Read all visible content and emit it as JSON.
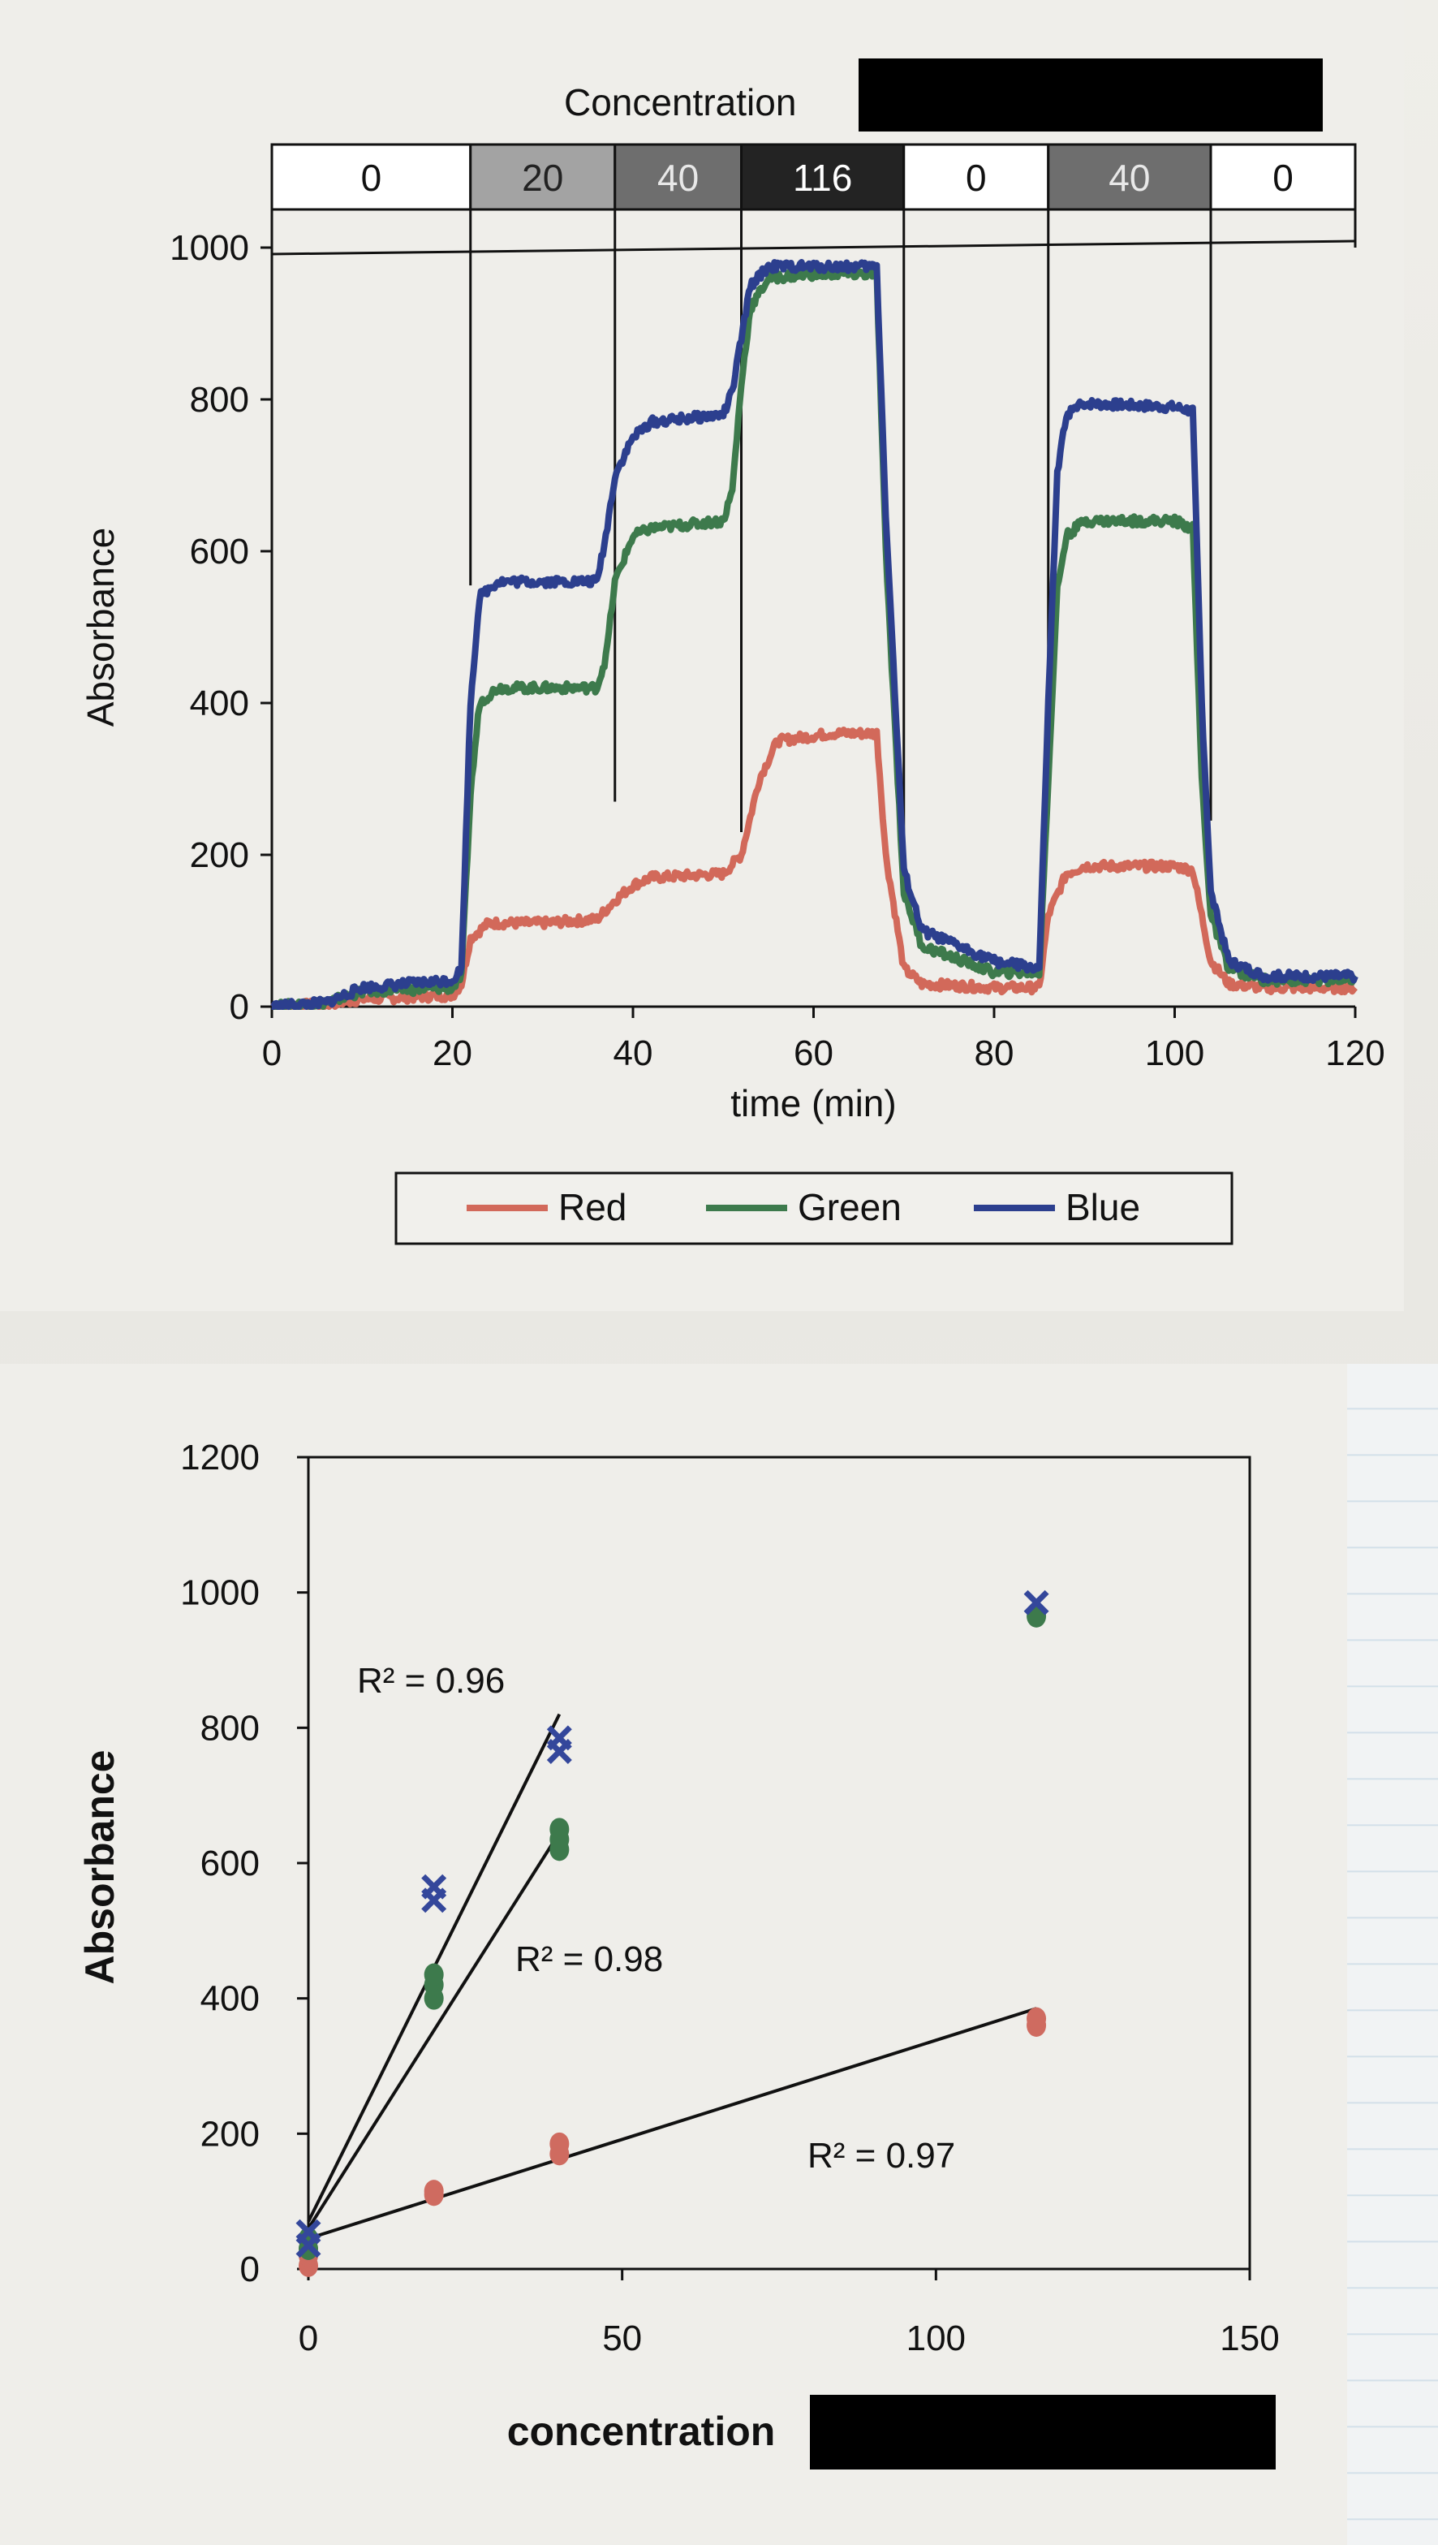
{
  "chart_data": [
    {
      "type": "line",
      "concentration_bar": {
        "title": "Concentration",
        "segments": [
          {
            "label": "0",
            "start": 0,
            "end": 22,
            "color": "#ffffff",
            "text_color": "#111111"
          },
          {
            "label": "20",
            "start": 22,
            "end": 38,
            "color": "#a3a3a3",
            "text_color": "#222222"
          },
          {
            "label": "40",
            "start": 38,
            "end": 52,
            "color": "#6e6e6e",
            "text_color": "#e8e8e8"
          },
          {
            "label": "116",
            "start": 52,
            "end": 70,
            "color": "#232323",
            "text_color": "#ffffff"
          },
          {
            "label": "0",
            "start": 70,
            "end": 86,
            "color": "#ffffff",
            "text_color": "#111111"
          },
          {
            "label": "40",
            "start": 86,
            "end": 104,
            "color": "#6e6e6e",
            "text_color": "#e8e8e8"
          },
          {
            "label": "0",
            "start": 104,
            "end": 120,
            "color": "#ffffff",
            "text_color": "#111111"
          }
        ]
      },
      "xlabel": "time (min)",
      "ylabel": "Absorbance",
      "xlim": [
        0,
        120
      ],
      "ylim": [
        0,
        1000
      ],
      "xticks": [
        "0",
        "20",
        "40",
        "60",
        "80",
        "100",
        "120"
      ],
      "yticks": [
        "0",
        "200",
        "400",
        "600",
        "800",
        "1000"
      ],
      "grid": false,
      "legend_position": "bottom",
      "series": [
        {
          "name": "Red",
          "color": "#d2695a",
          "x": [
            0,
            6,
            10,
            20,
            21,
            22,
            24,
            30,
            36,
            38,
            40,
            42,
            50,
            52,
            54,
            56,
            62,
            67,
            68,
            70,
            72,
            80,
            85,
            86,
            88,
            90,
            100,
            102,
            104,
            106,
            110,
            120
          ],
          "y": [
            0,
            3,
            10,
            15,
            30,
            90,
            110,
            110,
            115,
            140,
            160,
            170,
            175,
            200,
            300,
            350,
            360,
            360,
            200,
            50,
            30,
            25,
            25,
            120,
            175,
            185,
            185,
            180,
            60,
            30,
            25,
            25
          ]
        },
        {
          "name": "Green",
          "color": "#3d7a4c",
          "x": [
            0,
            6,
            10,
            20,
            21,
            22,
            23,
            25,
            30,
            36,
            37,
            38,
            40,
            42,
            50,
            51,
            52,
            53,
            55,
            60,
            67,
            68,
            70,
            72,
            80,
            85,
            86,
            87,
            88,
            90,
            100,
            102,
            103,
            104,
            106,
            110,
            120
          ],
          "y": [
            0,
            5,
            20,
            25,
            40,
            280,
            400,
            420,
            420,
            420,
            460,
            560,
            620,
            630,
            640,
            680,
            820,
            920,
            960,
            965,
            965,
            600,
            150,
            80,
            45,
            45,
            300,
            550,
            620,
            640,
            640,
            630,
            300,
            120,
            50,
            35,
            35
          ]
        },
        {
          "name": "Blue",
          "color": "#2c3f8e",
          "x": [
            0,
            6,
            10,
            20,
            21,
            22,
            23,
            25,
            30,
            36,
            37,
            38,
            40,
            42,
            50,
            51,
            52,
            53,
            55,
            60,
            67,
            68,
            70,
            72,
            80,
            85,
            86,
            87,
            88,
            90,
            100,
            102,
            103,
            104,
            106,
            110,
            120
          ],
          "y": [
            0,
            5,
            25,
            35,
            50,
            400,
            540,
            560,
            560,
            560,
            620,
            700,
            750,
            770,
            780,
            810,
            880,
            950,
            975,
            975,
            975,
            650,
            180,
            100,
            60,
            50,
            400,
            700,
            780,
            795,
            790,
            785,
            400,
            150,
            60,
            40,
            40
          ]
        }
      ]
    },
    {
      "type": "scatter",
      "xlabel": "concentration",
      "ylabel": "Absorbance",
      "xlim": [
        0,
        150
      ],
      "ylim": [
        0,
        1200
      ],
      "xticks": [
        "0",
        "50",
        "100",
        "150"
      ],
      "yticks": [
        "0",
        "200",
        "400",
        "600",
        "800",
        "1000",
        "1200"
      ],
      "grid": false,
      "series": [
        {
          "name": "Red",
          "color": "#cf6b60",
          "marker": "circle",
          "x": [
            0,
            0,
            20,
            20,
            40,
            40,
            116,
            116
          ],
          "y": [
            5,
            20,
            110,
            115,
            170,
            185,
            360,
            370
          ],
          "trendline": {
            "x": [
              0,
              116
            ],
            "y": [
              45,
              385
            ],
            "r2_label": "R² = 0.97"
          }
        },
        {
          "name": "Green",
          "color": "#3d7a4c",
          "marker": "circle",
          "x": [
            0,
            0,
            20,
            20,
            20,
            40,
            40,
            40,
            116
          ],
          "y": [
            30,
            45,
            400,
            420,
            435,
            620,
            635,
            650,
            965
          ],
          "trendline": {
            "x": [
              0,
              40
            ],
            "y": [
              60,
              645
            ],
            "r2_label": "R² = 0.98"
          }
        },
        {
          "name": "Blue",
          "color": "#34479b",
          "marker": "x",
          "x": [
            0,
            0,
            20,
            20,
            40,
            40,
            116
          ],
          "y": [
            35,
            55,
            545,
            565,
            765,
            785,
            985
          ],
          "trendline": {
            "x": [
              0,
              40
            ],
            "y": [
              70,
              820
            ],
            "r2_label": "R² = 0.96"
          }
        }
      ],
      "annotations": [
        "R² = 0.96",
        "R² = 0.98",
        "R² = 0.97"
      ]
    }
  ]
}
